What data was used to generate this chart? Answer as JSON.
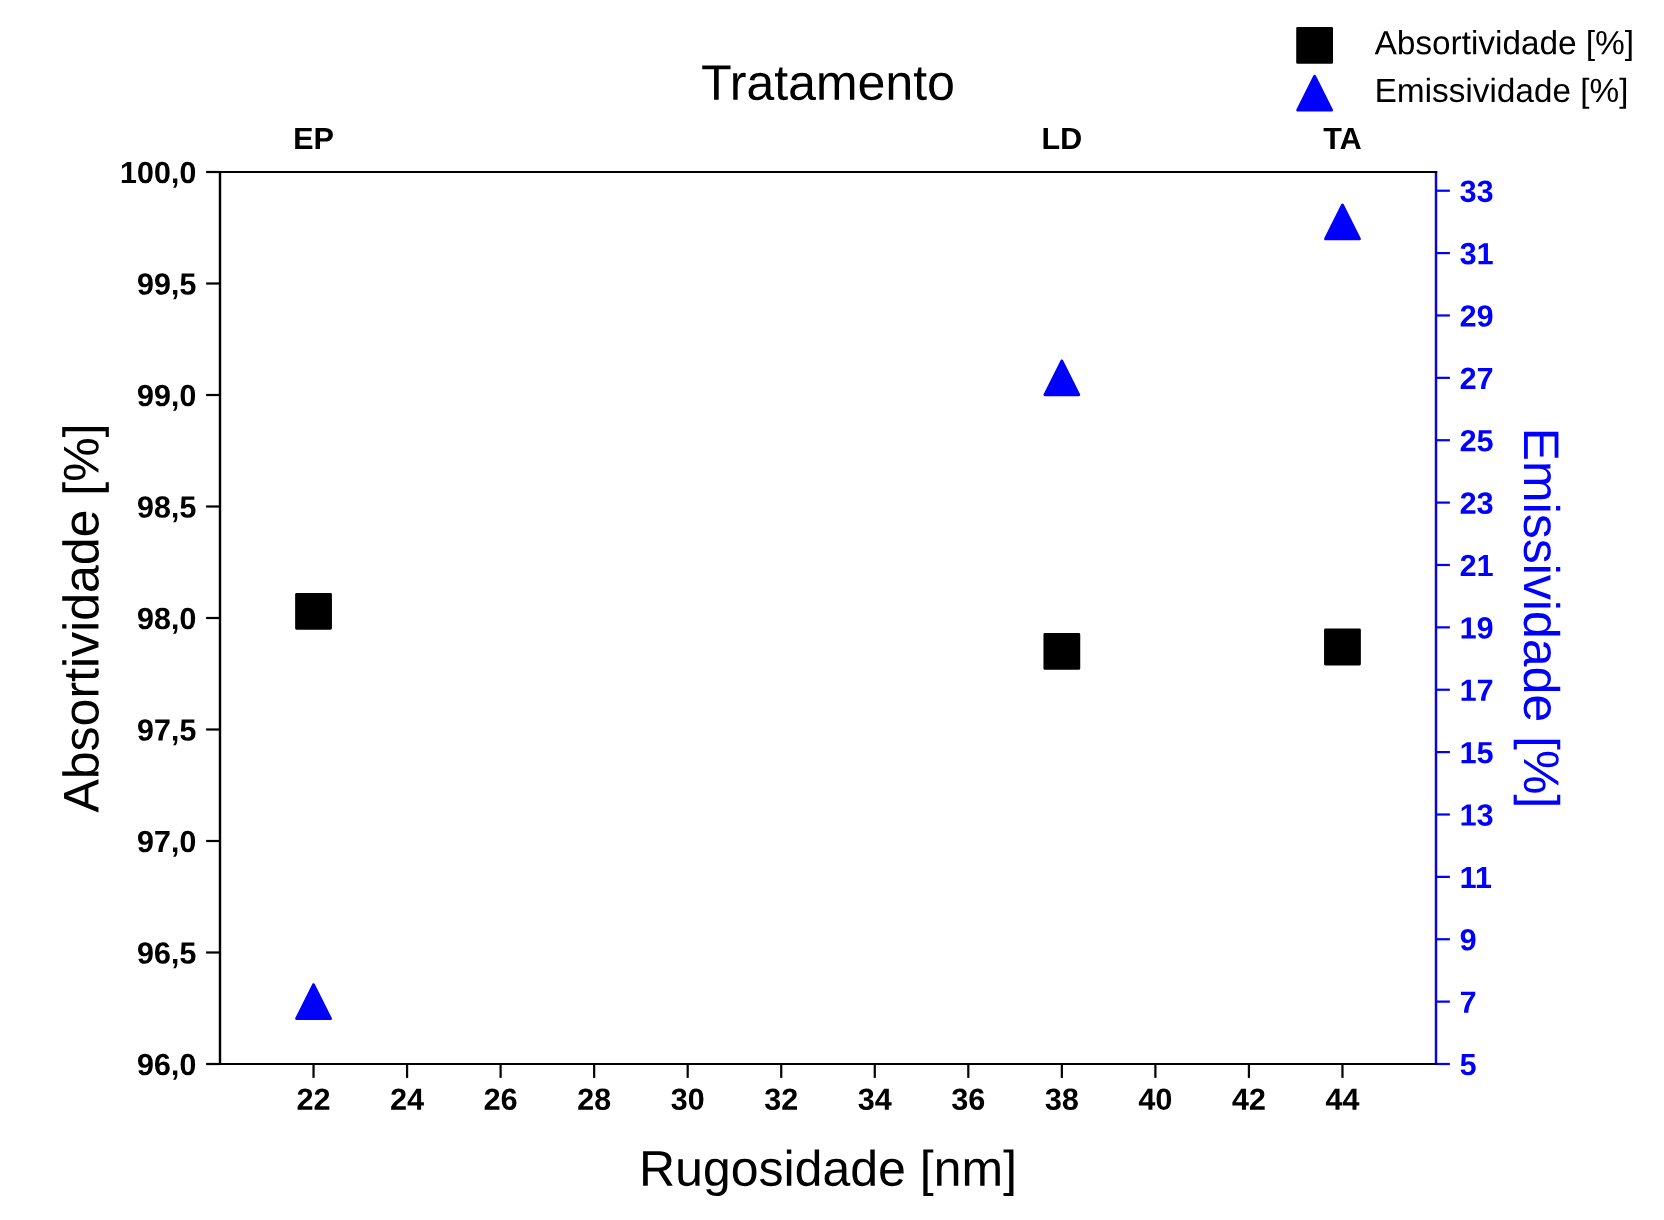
{
  "chart_data": {
    "type": "scatter",
    "x2label": "Tratamento",
    "xlabel": "Rugosidade [nm]",
    "ylabel": "Absortividade [%]",
    "y2label": "Emissividade [%]",
    "x": [
      22,
      38,
      44
    ],
    "series": [
      {
        "name": "Absortividade [%]",
        "color": "#000000",
        "marker": "square",
        "values": [
          98.03,
          97.85,
          97.87
        ]
      },
      {
        "name": "Emissividade [%]",
        "color": "#0000ff",
        "marker": "triangle",
        "axis": "y2",
        "values": [
          7,
          27,
          32
        ]
      }
    ],
    "xlim": [
      20,
      46
    ],
    "xticks": [
      22,
      24,
      26,
      28,
      30,
      32,
      34,
      36,
      38,
      40,
      42,
      44
    ],
    "annotations": [
      "EP",
      "LD",
      "TA"
    ],
    "ylim": [
      96,
      100
    ],
    "yticks": [
      {
        "value": 96,
        "label": "96,0"
      },
      {
        "value": 96.5,
        "label": "96,5"
      },
      {
        "value": 97,
        "label": "97,0"
      },
      {
        "value": 97.5,
        "label": "97,5"
      },
      {
        "value": 98,
        "label": "98,0"
      },
      {
        "value": 98.5,
        "label": "98,5"
      },
      {
        "value": 99,
        "label": "99,0"
      },
      {
        "value": 99.5,
        "label": "99,5"
      },
      {
        "value": 100,
        "label": "100,0"
      }
    ],
    "y2lim": [
      5,
      33.6
    ],
    "y2ticks": [
      5,
      7,
      9,
      11,
      13,
      15,
      17,
      19,
      21,
      23,
      25,
      27,
      29,
      31,
      33
    ],
    "legend": "top right",
    "grid": false
  }
}
